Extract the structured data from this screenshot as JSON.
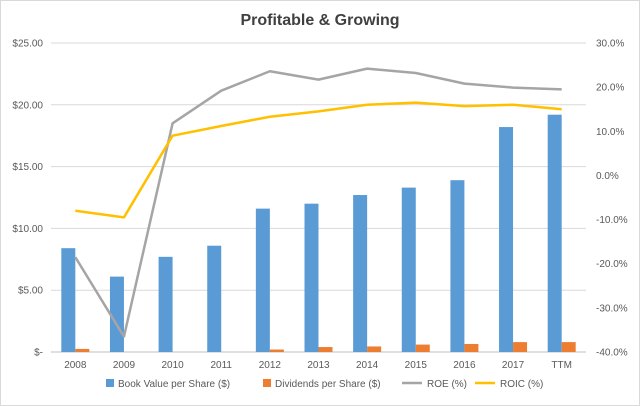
{
  "chart_data": {
    "type": "bar",
    "title": "Profitable & Growing",
    "categories": [
      "2008",
      "2009",
      "2010",
      "2011",
      "2012",
      "2013",
      "2014",
      "2015",
      "2016",
      "2017",
      "TTM"
    ],
    "left_axis": {
      "ylim": [
        0,
        25
      ],
      "ticks": [
        "$-",
        "$5.00",
        "$10.00",
        "$15.00",
        "$20.00",
        "$25.00"
      ]
    },
    "right_axis": {
      "ylim": [
        -40,
        30
      ],
      "ticks": [
        "-40.0%",
        "-30.0%",
        "-20.0%",
        "-10.0%",
        "0.0%",
        "10.0%",
        "20.0%",
        "30.0%"
      ]
    },
    "grid": true,
    "legend_position": "bottom",
    "series": [
      {
        "name": "Book Value per Share ($)",
        "type": "bar",
        "axis": "left",
        "color": "#5b9bd5",
        "values": [
          8.4,
          6.1,
          7.7,
          8.6,
          11.6,
          12.0,
          12.7,
          13.3,
          13.9,
          18.2,
          19.2
        ]
      },
      {
        "name": "Dividends per Share ($)",
        "type": "bar",
        "axis": "left",
        "color": "#ed7d31",
        "values": [
          0.25,
          0.0,
          0.0,
          0.0,
          0.2,
          0.4,
          0.45,
          0.6,
          0.65,
          0.8,
          0.8
        ]
      },
      {
        "name": "ROE (%)",
        "type": "line",
        "axis": "right",
        "color": "#a5a5a5",
        "values": [
          -18.5,
          -36.5,
          11.8,
          19.2,
          23.6,
          21.7,
          24.2,
          23.2,
          20.8,
          19.9,
          19.5
        ]
      },
      {
        "name": "ROIC (%)",
        "type": "line",
        "axis": "right",
        "color": "#ffc000",
        "values": [
          -8.0,
          -9.5,
          9.0,
          11.2,
          13.3,
          14.5,
          16.0,
          16.5,
          15.7,
          16.0,
          15.0
        ]
      }
    ]
  }
}
